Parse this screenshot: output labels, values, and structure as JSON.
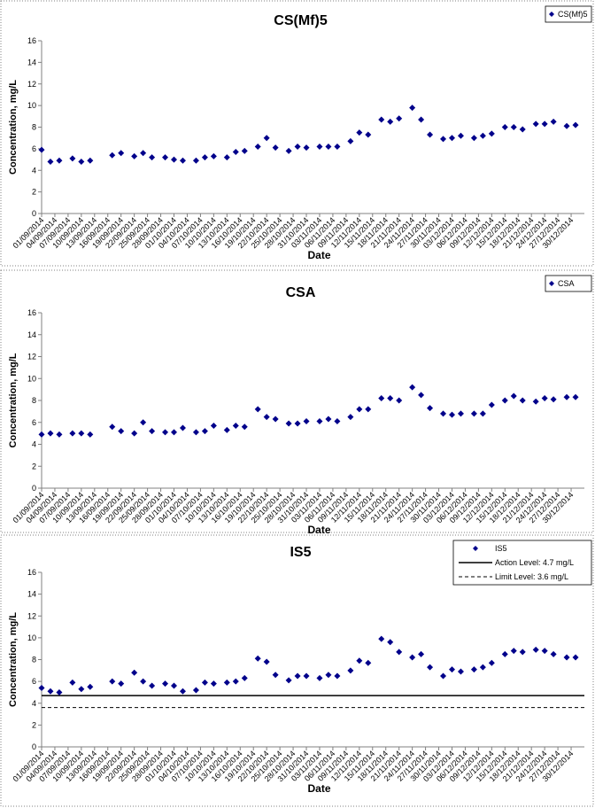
{
  "chart_data": [
    {
      "type": "scatter",
      "title": "CS(Mf)5",
      "x_label": "Date",
      "y_label": "Concentration, mg/L",
      "legend": "upper right",
      "x": [
        "01/09/2014",
        "03/09/2014",
        "05/09/2014",
        "08/09/2014",
        "10/09/2014",
        "12/09/2014",
        "17/09/2014",
        "19/09/2014",
        "22/09/2014",
        "24/09/2014",
        "26/09/2014",
        "29/09/2014",
        "01/10/2014",
        "03/10/2014",
        "06/10/2014",
        "08/10/2014",
        "10/10/2014",
        "13/10/2014",
        "15/10/2014",
        "17/10/2014",
        "20/10/2014",
        "22/10/2014",
        "24/10/2014",
        "27/10/2014",
        "29/10/2014",
        "31/10/2014",
        "03/11/2014",
        "05/11/2014",
        "07/11/2014",
        "10/11/2014",
        "12/11/2014",
        "14/11/2014",
        "17/11/2014",
        "19/11/2014",
        "21/11/2014",
        "24/11/2014",
        "26/11/2014",
        "28/11/2014",
        "01/12/2014",
        "03/12/2014",
        "05/12/2014",
        "08/12/2014",
        "10/12/2014",
        "12/12/2014",
        "15/12/2014",
        "17/12/2014",
        "19/12/2014",
        "22/12/2014",
        "24/12/2014",
        "26/12/2014",
        "29/12/2014",
        "31/12/2014"
      ],
      "series": [
        {
          "name": "CS(Mf)5",
          "color": "#00008b",
          "values": [
            5.9,
            4.8,
            4.9,
            5.1,
            4.8,
            4.9,
            5.4,
            5.6,
            5.3,
            5.6,
            5.2,
            5.2,
            5.0,
            4.9,
            4.9,
            5.2,
            5.3,
            5.2,
            5.7,
            5.8,
            6.2,
            7.0,
            6.1,
            5.8,
            6.2,
            6.1,
            6.2,
            6.2,
            6.2,
            6.7,
            7.5,
            7.3,
            8.7,
            8.5,
            8.8,
            9.8,
            8.7,
            7.3,
            6.9,
            7.0,
            7.2,
            7.0,
            7.2,
            7.4,
            8.0,
            8.0,
            7.8,
            8.3,
            8.3,
            8.5,
            8.1,
            8.2
          ]
        }
      ],
      "xlim": [
        "01/09/2014",
        "02/01/2015"
      ],
      "xticks": [
        "01/09/2014",
        "04/09/2014",
        "07/09/2014",
        "10/09/2014",
        "13/09/2014",
        "16/09/2014",
        "19/09/2014",
        "22/09/2014",
        "25/09/2014",
        "28/09/2014",
        "01/10/2014",
        "04/10/2014",
        "07/10/2014",
        "10/10/2014",
        "13/10/2014",
        "16/10/2014",
        "19/10/2014",
        "22/10/2014",
        "25/10/2014",
        "28/10/2014",
        "31/10/2014",
        "03/11/2014",
        "06/11/2014",
        "09/11/2014",
        "12/11/2014",
        "15/11/2014",
        "18/11/2014",
        "21/11/2014",
        "24/11/2014",
        "27/11/2014",
        "30/11/2014",
        "03/12/2014",
        "06/12/2014",
        "09/12/2014",
        "12/12/2014",
        "15/12/2014",
        "18/12/2014",
        "21/12/2014",
        "24/12/2014",
        "27/12/2014",
        "30/12/2014"
      ],
      "ylim": [
        0,
        16
      ],
      "yticks": [
        0,
        2,
        4,
        6,
        8,
        10,
        12,
        14,
        16
      ]
    },
    {
      "type": "scatter",
      "title": "CSA",
      "x_label": "Date",
      "y_label": "Concentration, mg/L",
      "legend": "upper right",
      "x": [
        "01/09/2014",
        "03/09/2014",
        "05/09/2014",
        "08/09/2014",
        "10/09/2014",
        "12/09/2014",
        "17/09/2014",
        "19/09/2014",
        "22/09/2014",
        "24/09/2014",
        "26/09/2014",
        "29/09/2014",
        "01/10/2014",
        "03/10/2014",
        "06/10/2014",
        "08/10/2014",
        "10/10/2014",
        "13/10/2014",
        "15/10/2014",
        "17/10/2014",
        "20/10/2014",
        "22/10/2014",
        "24/10/2014",
        "27/10/2014",
        "29/10/2014",
        "31/10/2014",
        "03/11/2014",
        "05/11/2014",
        "07/11/2014",
        "10/11/2014",
        "12/11/2014",
        "14/11/2014",
        "17/11/2014",
        "19/11/2014",
        "21/11/2014",
        "24/11/2014",
        "26/11/2014",
        "28/11/2014",
        "01/12/2014",
        "03/12/2014",
        "05/12/2014",
        "08/12/2014",
        "10/12/2014",
        "12/12/2014",
        "15/12/2014",
        "17/12/2014",
        "19/12/2014",
        "22/12/2014",
        "24/12/2014",
        "26/12/2014",
        "29/12/2014",
        "31/12/2014"
      ],
      "series": [
        {
          "name": "CSA",
          "color": "#00008b",
          "values": [
            4.9,
            5.0,
            4.9,
            5.0,
            5.0,
            4.9,
            5.6,
            5.2,
            5.0,
            6.0,
            5.2,
            5.1,
            5.1,
            5.5,
            5.1,
            5.2,
            5.7,
            5.3,
            5.7,
            5.6,
            7.2,
            6.5,
            6.3,
            5.9,
            5.9,
            6.1,
            6.1,
            6.3,
            6.1,
            6.5,
            7.2,
            7.2,
            8.2,
            8.2,
            8.0,
            9.2,
            8.5,
            7.3,
            6.8,
            6.7,
            6.8,
            6.8,
            6.8,
            7.6,
            8.0,
            8.4,
            8.0,
            7.9,
            8.2,
            8.1,
            8.3,
            8.3
          ]
        }
      ],
      "xlim": [
        "01/09/2014",
        "02/01/2015"
      ],
      "xticks": [
        "01/09/2014",
        "04/09/2014",
        "07/09/2014",
        "10/09/2014",
        "13/09/2014",
        "16/09/2014",
        "19/09/2014",
        "22/09/2014",
        "25/09/2014",
        "28/09/2014",
        "01/10/2014",
        "04/10/2014",
        "07/10/2014",
        "10/10/2014",
        "13/10/2014",
        "16/10/2014",
        "19/10/2014",
        "22/10/2014",
        "25/10/2014",
        "28/10/2014",
        "31/10/2014",
        "03/11/2014",
        "06/11/2014",
        "09/11/2014",
        "12/11/2014",
        "15/11/2014",
        "18/11/2014",
        "21/11/2014",
        "24/11/2014",
        "27/11/2014",
        "30/11/2014",
        "03/12/2014",
        "06/12/2014",
        "09/12/2014",
        "12/12/2014",
        "15/12/2014",
        "18/12/2014",
        "21/12/2014",
        "24/12/2014",
        "27/12/2014",
        "30/12/2014"
      ],
      "ylim": [
        0,
        16
      ],
      "yticks": [
        0,
        2,
        4,
        6,
        8,
        10,
        12,
        14,
        16
      ]
    },
    {
      "type": "scatter",
      "title": "IS5",
      "x_label": "Date",
      "y_label": "Concentration, mg/L",
      "legend": "upper right",
      "x": [
        "01/09/2014",
        "03/09/2014",
        "05/09/2014",
        "08/09/2014",
        "10/09/2014",
        "12/09/2014",
        "17/09/2014",
        "19/09/2014",
        "22/09/2014",
        "24/09/2014",
        "26/09/2014",
        "29/09/2014",
        "01/10/2014",
        "03/10/2014",
        "06/10/2014",
        "08/10/2014",
        "10/10/2014",
        "13/10/2014",
        "15/10/2014",
        "17/10/2014",
        "20/10/2014",
        "22/10/2014",
        "24/10/2014",
        "27/10/2014",
        "29/10/2014",
        "31/10/2014",
        "03/11/2014",
        "05/11/2014",
        "07/11/2014",
        "10/11/2014",
        "12/11/2014",
        "14/11/2014",
        "17/11/2014",
        "19/11/2014",
        "21/11/2014",
        "24/11/2014",
        "26/11/2014",
        "28/11/2014",
        "01/12/2014",
        "03/12/2014",
        "05/12/2014",
        "08/12/2014",
        "10/12/2014",
        "12/12/2014",
        "15/12/2014",
        "17/12/2014",
        "19/12/2014",
        "22/12/2014",
        "24/12/2014",
        "26/12/2014",
        "29/12/2014",
        "31/12/2014"
      ],
      "series": [
        {
          "name": "IS5",
          "color": "#00008b",
          "values": [
            5.4,
            5.1,
            5.0,
            5.9,
            5.3,
            5.5,
            6.0,
            5.8,
            6.8,
            6.0,
            5.6,
            5.8,
            5.6,
            5.1,
            5.2,
            5.9,
            5.8,
            5.9,
            6.0,
            6.3,
            8.1,
            7.8,
            6.6,
            6.1,
            6.5,
            6.5,
            6.3,
            6.6,
            6.5,
            7.0,
            7.9,
            7.7,
            9.9,
            9.6,
            8.7,
            8.2,
            8.5,
            7.3,
            6.5,
            7.1,
            6.9,
            7.1,
            7.3,
            7.7,
            8.5,
            8.8,
            8.7,
            8.9,
            8.8,
            8.5,
            8.2,
            8.2
          ]
        }
      ],
      "reference_lines": [
        {
          "name": "Action Level: 4.7 mg/L",
          "value": 4.7,
          "style": "solid",
          "color": "#000000"
        },
        {
          "name": "Limit Level: 3.6 mg/L",
          "value": 3.6,
          "style": "dashed",
          "color": "#000000"
        }
      ],
      "xlim": [
        "01/09/2014",
        "02/01/2015"
      ],
      "xticks": [
        "01/09/2014",
        "04/09/2014",
        "07/09/2014",
        "10/09/2014",
        "13/09/2014",
        "16/09/2014",
        "19/09/2014",
        "22/09/2014",
        "25/09/2014",
        "28/09/2014",
        "01/10/2014",
        "04/10/2014",
        "07/10/2014",
        "10/10/2014",
        "13/10/2014",
        "16/10/2014",
        "19/10/2014",
        "22/10/2014",
        "25/10/2014",
        "28/10/2014",
        "31/10/2014",
        "03/11/2014",
        "06/11/2014",
        "09/11/2014",
        "12/11/2014",
        "15/11/2014",
        "18/11/2014",
        "21/11/2014",
        "24/11/2014",
        "27/11/2014",
        "30/11/2014",
        "03/12/2014",
        "06/12/2014",
        "09/12/2014",
        "12/12/2014",
        "15/12/2014",
        "18/12/2014",
        "21/12/2014",
        "24/12/2014",
        "27/12/2014",
        "30/12/2014"
      ],
      "ylim": [
        0,
        16
      ],
      "yticks": [
        0,
        2,
        4,
        6,
        8,
        10,
        12,
        14,
        16
      ]
    }
  ]
}
